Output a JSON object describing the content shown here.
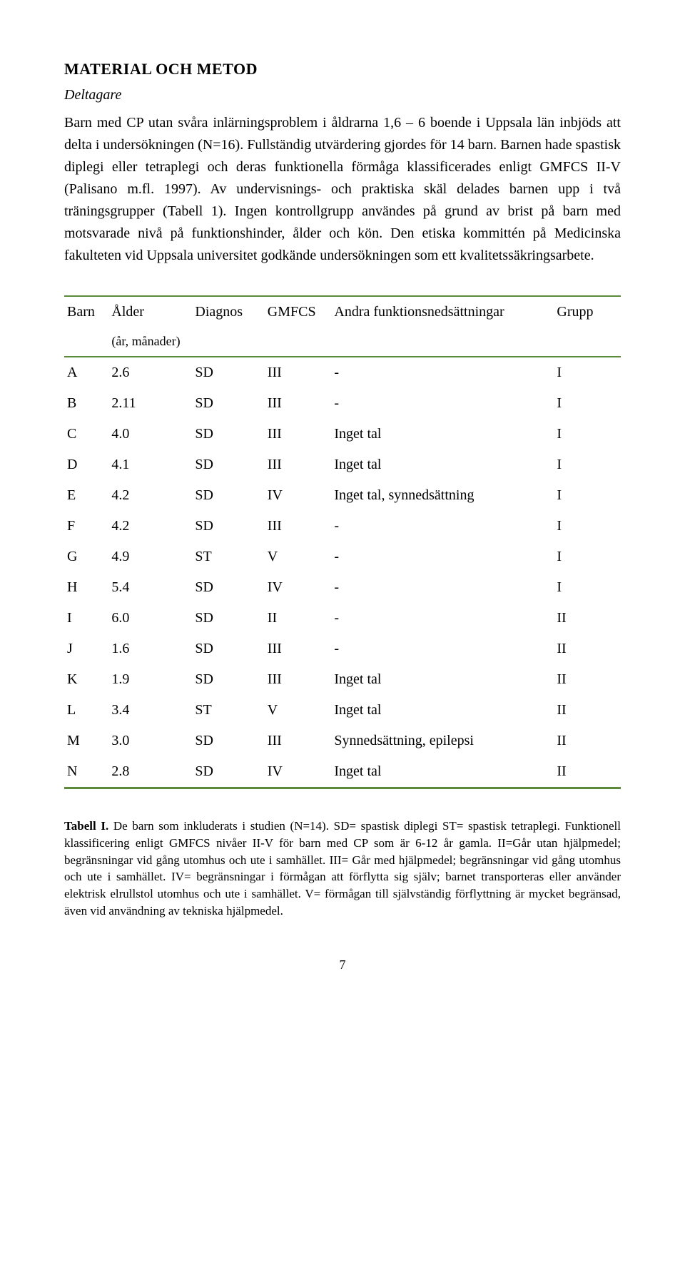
{
  "heading": "MATERIAL OCH METOD",
  "subhead": "Deltagare",
  "para1": "Barn med CP utan svåra inlärningsproblem i åldrarna 1,6 – 6 boende i Uppsala län inbjöds att delta i undersökningen (N=16). Fullständig utvärdering gjordes för 14 barn. Barnen hade spastisk diplegi eller tetraplegi och deras funktionella förmåga klassificerades enligt GMFCS II-V (Palisano m.fl. 1997). Av undervisnings- och praktiska skäl delades barnen upp i två träningsgrupper (Tabell 1). Ingen kontrollgrupp användes på grund av brist på barn med motsvarade nivå på funktionshinder, ålder och kön. Den etiska kommittén på Medicinska fakulteten vid Uppsala universitet godkände undersökningen som ett kvalitetssäkringsarbete.",
  "table": {
    "columns": [
      "Barn",
      "Ålder",
      "Diagnos",
      "GMFCS",
      "Andra funktionsnedsättningar",
      "Grupp"
    ],
    "subheader": "(år, månader)",
    "rows": [
      [
        "A",
        "2.6",
        "SD",
        "III",
        "-",
        "I"
      ],
      [
        "B",
        "2.11",
        "SD",
        "III",
        "-",
        "I"
      ],
      [
        "C",
        "4.0",
        "SD",
        "III",
        "Inget tal",
        "I"
      ],
      [
        "D",
        "4.1",
        "SD",
        "III",
        "Inget tal",
        "I"
      ],
      [
        "E",
        "4.2",
        "SD",
        "IV",
        "Inget tal, synnedsättning",
        "I"
      ],
      [
        "F",
        "4.2",
        "SD",
        "III",
        "-",
        "I"
      ],
      [
        "G",
        "4.9",
        "ST",
        "V",
        "-",
        "I"
      ],
      [
        "H",
        "5.4",
        "SD",
        "IV",
        "-",
        "I"
      ],
      [
        "I",
        "6.0",
        "SD",
        "II",
        "-",
        "II"
      ],
      [
        "J",
        "1.6",
        "SD",
        "III",
        "-",
        "II"
      ],
      [
        "K",
        "1.9",
        "SD",
        "III",
        "Inget tal",
        "II"
      ],
      [
        "L",
        "3.4",
        "ST",
        "V",
        "Inget tal",
        "II"
      ],
      [
        "M",
        "3.0",
        "SD",
        "III",
        "Synnedsättning, epilepsi",
        "II"
      ],
      [
        "N",
        "2.8",
        "SD",
        "IV",
        "Inget tal",
        "II"
      ]
    ],
    "border_color": "#5a8a3a"
  },
  "caption_bold": "Tabell I.",
  "caption_text": " De barn som inkluderats i studien (N=14). SD= spastisk diplegi ST= spastisk tetraplegi. Funktionell klassificering enligt GMFCS nivåer II-V för barn med CP som är 6-12 år gamla. II=Går utan hjälpmedel; begränsningar vid gång utomhus och ute i samhället. III= Går med hjälpmedel; begränsningar vid gång utomhus och ute i samhället. IV= begränsningar i förmågan att förflytta sig själv; barnet transporteras eller använder elektrisk elrullstol utomhus och ute i samhället. V= förmågan till självständig förflyttning är mycket begränsad, även vid användning av tekniska hjälpmedel.",
  "page_number": "7"
}
